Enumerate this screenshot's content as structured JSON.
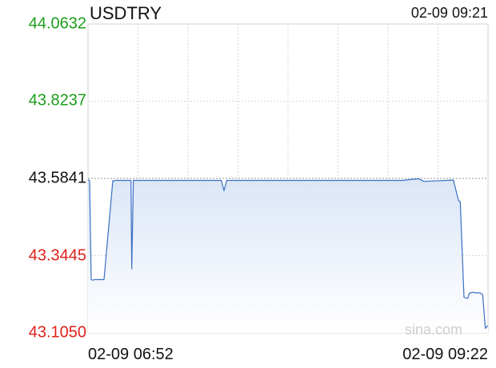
{
  "header": {
    "symbol": "USDTRY",
    "timestamp": "02-09 09:21"
  },
  "watermark": "sina.com",
  "colors": {
    "up": "#1a9e1a",
    "down": "#e0201a",
    "neutral": "#111111",
    "line": "#3a6fc4",
    "fill_top": "#dbe6f6",
    "fill_bottom": "#ffffff"
  },
  "chart_data": {
    "type": "area",
    "title": "USDTRY",
    "ylim": [
      43.105,
      44.0632
    ],
    "reference_value": 43.5841,
    "y_ticks": [
      {
        "label": "44.0632",
        "value": 44.0632,
        "color": "up"
      },
      {
        "label": "43.8237",
        "value": 43.8237,
        "color": "up"
      },
      {
        "label": "43.5841",
        "value": 43.5841,
        "color": "neutral"
      },
      {
        "label": "43.3445",
        "value": 43.3445,
        "color": "down"
      },
      {
        "label": "43.1050",
        "value": 43.105,
        "color": "down"
      }
    ],
    "x_ticks": [
      {
        "label": "02-09 06:52",
        "align": "left"
      },
      {
        "label": "02-09 09:22",
        "align": "right"
      }
    ],
    "x_range": [
      0,
      150
    ],
    "grid": true,
    "series": [
      {
        "x": [
          0,
          0.6,
          1.2,
          1.8,
          2.4,
          3.5,
          4.8,
          6,
          9.3,
          9.8,
          10.2,
          12,
          15,
          16.1,
          16.4,
          17,
          18.6,
          19.6,
          20,
          22,
          26,
          30,
          32,
          33,
          34,
          36,
          40,
          48,
          50,
          51,
          52,
          53,
          53.5,
          54,
          56,
          57.8,
          58.6,
          59.2,
          60,
          61,
          62,
          64,
          65,
          66,
          70,
          80,
          90,
          95.6,
          96.3,
          96.9,
          99,
          100,
          104,
          108,
          112,
          118,
          124,
          126,
          137,
          138.6,
          139,
          139.6,
          141,
          142.4,
          143,
          144.5,
          145.2,
          147,
          148,
          149,
          150
        ],
        "y": [
          43.58,
          43.577,
          43.27,
          43.268,
          43.27,
          43.27,
          43.27,
          43.27,
          43.577,
          43.576,
          43.578,
          43.578,
          43.578,
          43.578,
          43.303,
          43.578,
          43.578,
          43.578,
          43.578,
          43.578,
          43.578,
          43.578,
          43.578,
          43.578,
          43.578,
          43.578,
          43.578,
          43.578,
          43.578,
          43.546,
          43.578,
          43.578,
          43.578,
          43.578,
          43.578,
          43.578,
          43.578,
          43.578,
          43.578,
          43.578,
          43.578,
          43.578,
          43.578,
          43.578,
          43.578,
          43.578,
          43.578,
          43.578,
          43.578,
          43.578,
          43.578,
          43.578,
          43.578,
          43.578,
          43.578,
          43.578,
          43.583,
          43.575,
          43.579,
          43.527,
          43.515,
          43.512,
          43.215,
          43.212,
          43.228,
          43.231,
          43.229,
          43.229,
          43.224,
          43.119,
          43.127
        ]
      }
    ]
  }
}
